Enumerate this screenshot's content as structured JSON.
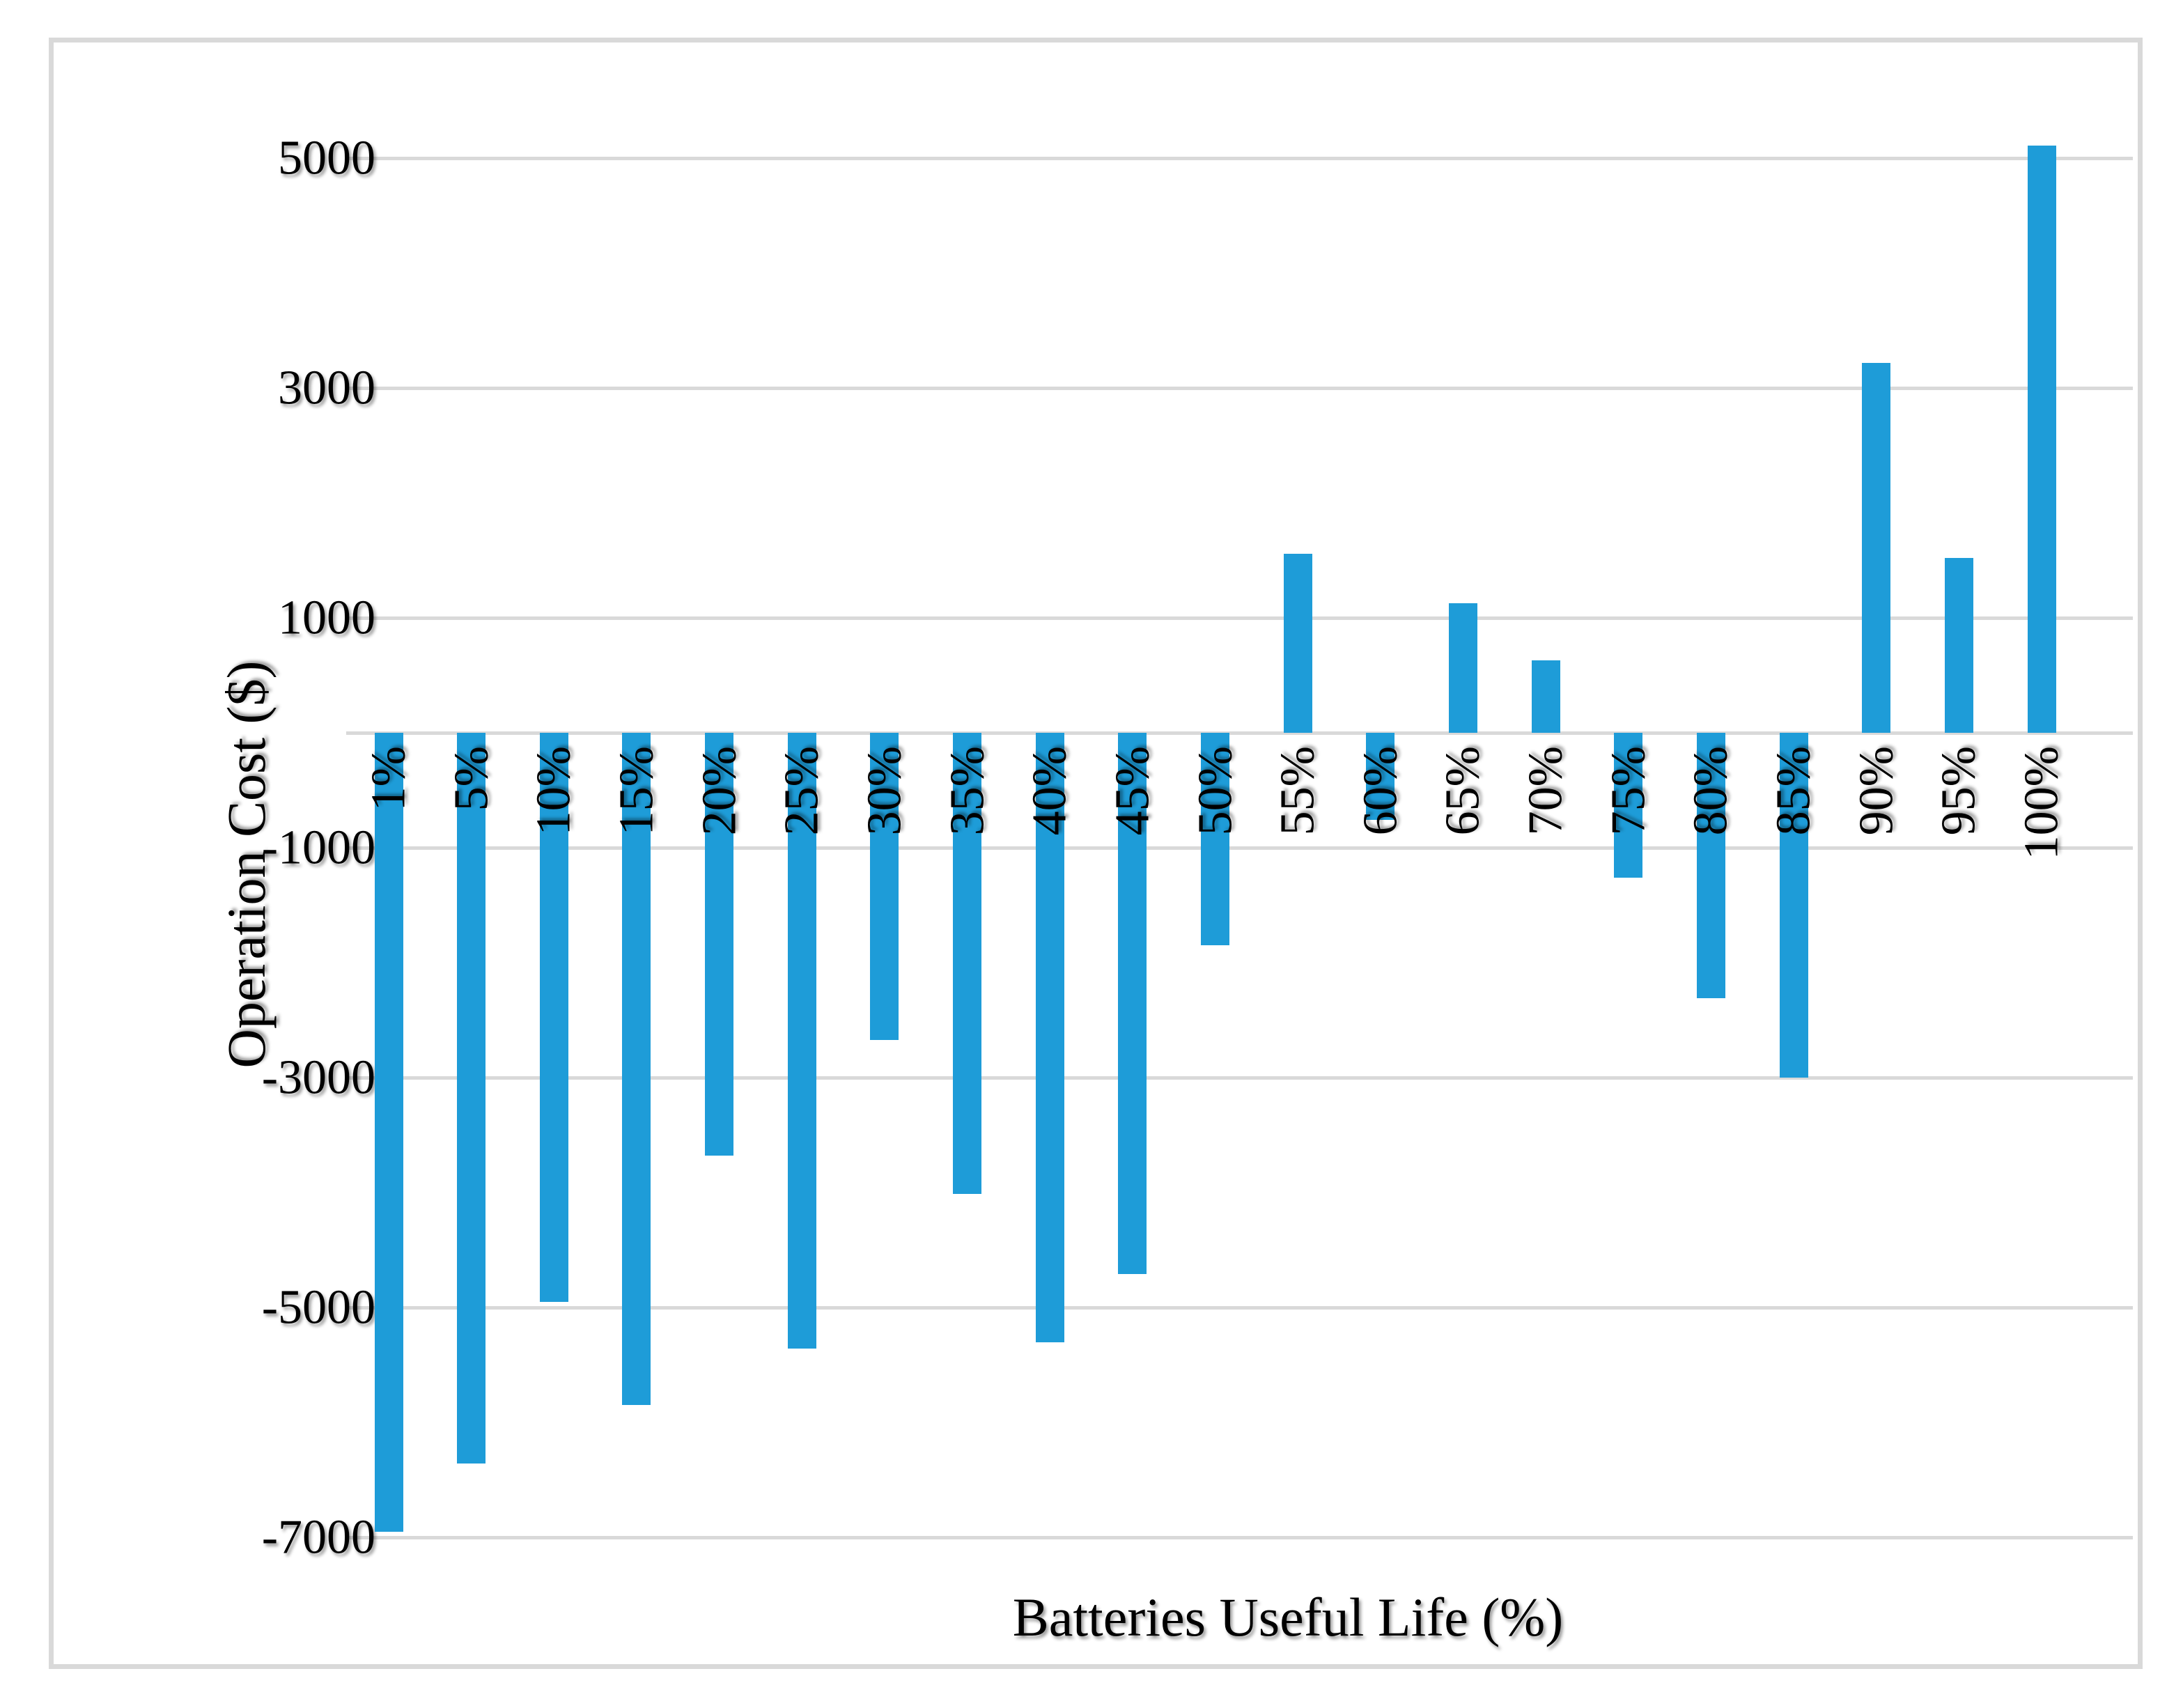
{
  "chart_data": {
    "type": "bar",
    "title": "",
    "categories": [
      "1%",
      "5%",
      "10%",
      "15%",
      "20%",
      "25%",
      "30%",
      "35%",
      "40%",
      "45%",
      "50%",
      "55%",
      "60%",
      "65%",
      "70%",
      "75%",
      "80%",
      "85%",
      "90%",
      "95%",
      "100%"
    ],
    "values": [
      -6950,
      -6360,
      -4950,
      -5850,
      -3680,
      -5360,
      -2670,
      -4010,
      -5300,
      -4710,
      -1850,
      1560,
      -760,
      1130,
      630,
      -1260,
      -2310,
      -3000,
      3220,
      1520,
      5110
    ],
    "xlabel": "Batteries Useful Life (%)",
    "ylabel": "Operation Cost ($)",
    "y_ticks": [
      5000,
      3000,
      1000,
      -1000,
      -3000,
      -5000,
      -7000
    ],
    "ylim": [
      -7600,
      5600
    ],
    "grid": "horizontal gridlines at labeled ticks plus zero axis line",
    "legend": "none",
    "bar_color": "#1E9CD8",
    "gridline_color": "#D9D9D9",
    "border_color": "#D9D9D9",
    "background_color": "#FFFFFF",
    "text_color": "#000000"
  }
}
